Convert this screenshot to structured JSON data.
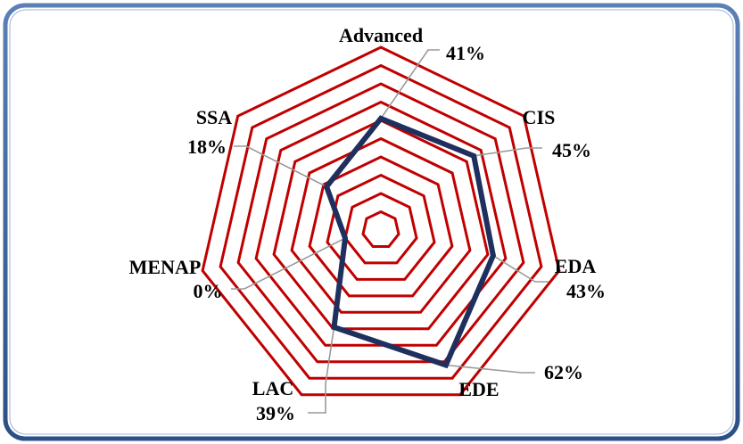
{
  "chart_data": {
    "type": "radar",
    "title": "",
    "categories": [
      "Advanced",
      "CIS",
      "EDA",
      "EDE",
      "LAC",
      "MENAP",
      "SSA"
    ],
    "value_labels": [
      "41%",
      "45%",
      "43%",
      "62%",
      "39%",
      "0%",
      "18%"
    ],
    "values": [
      41,
      45,
      43,
      62,
      39,
      0,
      18
    ],
    "rmin": -20,
    "rmax": 80,
    "ring_step": 10,
    "grid": true,
    "legend": "none"
  },
  "colors": {
    "background": "#ffffff",
    "frame_border": "#3a5f96",
    "grid": "#c00000",
    "series": "#1f2f5e",
    "leader": "#9a9a9a"
  }
}
